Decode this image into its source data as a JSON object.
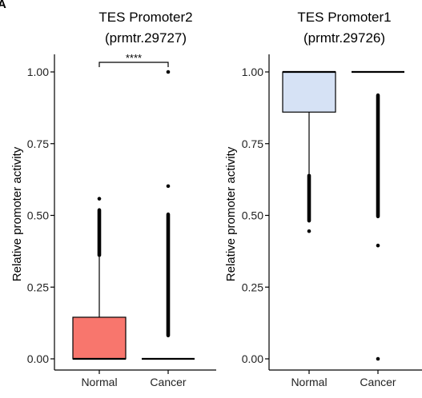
{
  "panel_label": "A",
  "chart_data": [
    {
      "type": "box",
      "title": "TES Promoter2",
      "subtitle": "(prmtr.29727)",
      "xlabel": "",
      "ylabel": "Relative promoter activity",
      "ylim": [
        0,
        1
      ],
      "yticks": [
        "0.00",
        "0.25",
        "0.50",
        "0.75",
        "1.00"
      ],
      "grid": false,
      "legend": "none",
      "categories": [
        "Normal",
        "Cancer"
      ],
      "boxes": [
        {
          "name": "Normal",
          "fill": "#F8766D",
          "min": 0.0,
          "q1": 0.0,
          "median": 0.0,
          "q3": 0.145,
          "whisker_high": 0.355,
          "outlier_range": [
            0.355,
            0.525
          ],
          "outliers": [
            0.558
          ]
        },
        {
          "name": "Cancer",
          "fill": "#00BFC4",
          "min": 0.0,
          "q1": 0.0,
          "median": 0.0,
          "q3": 0.0,
          "whisker_high": 0.0,
          "outlier_range": [
            0.075,
            0.51
          ],
          "outliers": [
            0.602,
            1.0
          ]
        }
      ],
      "significance": {
        "label": "****",
        "between": [
          "Normal",
          "Cancer"
        ]
      }
    },
    {
      "type": "box",
      "title": "TES Promoter1",
      "subtitle": "(prmtr.29726)",
      "xlabel": "",
      "ylabel": "Relative promoter activity",
      "ylim": [
        0,
        1
      ],
      "yticks": [
        "0.00",
        "0.25",
        "0.50",
        "0.75",
        "1.00"
      ],
      "grid": false,
      "legend": "none",
      "categories": [
        "Normal",
        "Cancer"
      ],
      "boxes": [
        {
          "name": "Normal",
          "fill": "#D6E2F5",
          "min": 0.645,
          "q1": 0.86,
          "median": 1.0,
          "q3": 1.0,
          "whisker_high": 1.0,
          "outlier_range": [
            0.475,
            0.645
          ],
          "outliers": [
            0.445
          ]
        },
        {
          "name": "Cancer",
          "fill": "#00BFC4",
          "min": 1.0,
          "q1": 1.0,
          "median": 1.0,
          "q3": 1.0,
          "whisker_high": 1.0,
          "outlier_range": [
            0.49,
            0.925
          ],
          "outliers": [
            0.395,
            0.0
          ]
        }
      ]
    }
  ]
}
